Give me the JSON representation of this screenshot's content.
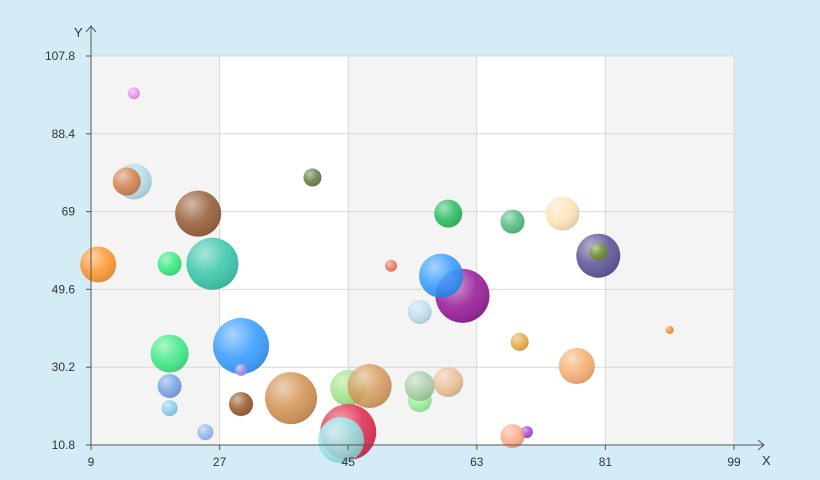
{
  "chart_data": {
    "type": "scatter",
    "title": "",
    "xlabel": "X",
    "ylabel": "Y",
    "xlim": [
      9,
      99
    ],
    "ylim": [
      10.8,
      107.8
    ],
    "x_ticks": [
      "9",
      "27",
      "45",
      "63",
      "81",
      "99"
    ],
    "y_ticks": [
      "10.8",
      "30.2",
      "49.6",
      "69",
      "88.4",
      "107.8"
    ],
    "grid": true,
    "legend": "none",
    "bubbles": [
      {
        "x": 15.0,
        "y": 98.5,
        "r": 6,
        "color": "#e98be8"
      },
      {
        "x": 15.0,
        "y": 76.5,
        "r": 18,
        "color": "#abdbe8"
      },
      {
        "x": 14.0,
        "y": 76.5,
        "r": 14,
        "color": "#d2763c"
      },
      {
        "x": 10.0,
        "y": 55.8,
        "r": 18,
        "color": "#ff8c1a"
      },
      {
        "x": 20.0,
        "y": 56.0,
        "r": 12,
        "color": "#1ee870"
      },
      {
        "x": 20.0,
        "y": 33.6,
        "r": 19,
        "color": "#28e878"
      },
      {
        "x": 20.0,
        "y": 25.5,
        "r": 12,
        "color": "#6699e0"
      },
      {
        "x": 20.0,
        "y": 20.0,
        "r": 8,
        "color": "#7fc8e8"
      },
      {
        "x": 25.0,
        "y": 14.0,
        "r": 8,
        "color": "#8cb0ee"
      },
      {
        "x": 24.0,
        "y": 68.5,
        "r": 23,
        "color": "#8b4a1e"
      },
      {
        "x": 26.0,
        "y": 56.0,
        "r": 26,
        "color": "#20bfa0"
      },
      {
        "x": 30.0,
        "y": 35.5,
        "r": 28,
        "color": "#1e90ff"
      },
      {
        "x": 30.0,
        "y": 29.5,
        "r": 6,
        "color": "#a78be8"
      },
      {
        "x": 30.0,
        "y": 21.0,
        "r": 12,
        "color": "#8b4513"
      },
      {
        "x": 37.0,
        "y": 22.5,
        "r": 26,
        "color": "#cd853f"
      },
      {
        "x": 40.0,
        "y": 77.5,
        "r": 9,
        "color": "#556b2f"
      },
      {
        "x": 45.0,
        "y": 25.0,
        "r": 18,
        "color": "#96e07a"
      },
      {
        "x": 48.0,
        "y": 25.5,
        "r": 22,
        "color": "#d2904c"
      },
      {
        "x": 45.0,
        "y": 14.0,
        "r": 28,
        "color": "#dc143c"
      },
      {
        "x": 44.0,
        "y": 12.0,
        "r": 23,
        "color": "#8fe8e8"
      },
      {
        "x": 51.0,
        "y": 55.5,
        "r": 6,
        "color": "#f06a4a"
      },
      {
        "x": 55.0,
        "y": 44.0,
        "r": 12,
        "color": "#b6dcea"
      },
      {
        "x": 55.0,
        "y": 22.0,
        "r": 12,
        "color": "#90ee90"
      },
      {
        "x": 55.0,
        "y": 25.5,
        "r": 15,
        "color": "#a5c9a5"
      },
      {
        "x": 59.0,
        "y": 26.5,
        "r": 15,
        "color": "#e8b88a"
      },
      {
        "x": 61.0,
        "y": 48.0,
        "r": 27,
        "color": "#8b008b"
      },
      {
        "x": 58.0,
        "y": 53.0,
        "r": 22,
        "color": "#1e90ff"
      },
      {
        "x": 59.0,
        "y": 68.5,
        "r": 14,
        "color": "#10b550"
      },
      {
        "x": 68.0,
        "y": 66.5,
        "r": 12,
        "color": "#3cb371"
      },
      {
        "x": 75.0,
        "y": 68.5,
        "r": 17,
        "color": "#ffe1b0"
      },
      {
        "x": 80.0,
        "y": 58.0,
        "r": 22,
        "color": "#483d8b"
      },
      {
        "x": 80.0,
        "y": 59.0,
        "r": 9,
        "color": "#6b8e23"
      },
      {
        "x": 69.0,
        "y": 36.5,
        "r": 9,
        "color": "#e0a030"
      },
      {
        "x": 77.0,
        "y": 30.5,
        "r": 18,
        "color": "#f4a460"
      },
      {
        "x": 70.0,
        "y": 14.0,
        "r": 6,
        "color": "#9932cc"
      },
      {
        "x": 68.0,
        "y": 13.0,
        "r": 12,
        "color": "#ffa07a"
      },
      {
        "x": 90.0,
        "y": 39.5,
        "r": 4,
        "color": "#f08020"
      }
    ]
  }
}
